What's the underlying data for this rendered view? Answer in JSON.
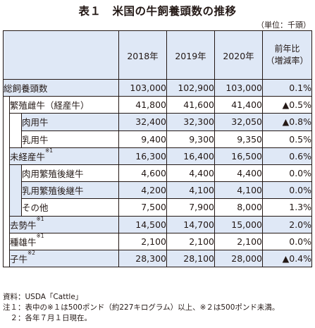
{
  "title": "表１　米国の牛飼養頭数の推移",
  "unit": "（単位：千頭）",
  "headers": {
    "y2018": "2018年",
    "y2019": "2019年",
    "y2020": "2020年",
    "change_line1": "前年比",
    "change_line2": "（増減率）"
  },
  "rows": [
    {
      "label": "総飼養頭数",
      "sup": "",
      "v2018": "103,000",
      "v2019": "102,900",
      "v2020": "103,000",
      "change": "0.1%"
    },
    {
      "label": "繁殖雌牛（経産牛）",
      "sup": "",
      "v2018": "41,800",
      "v2019": "41,600",
      "v2020": "41,400",
      "change": "▲0.5%"
    },
    {
      "label": "肉用牛",
      "sup": "",
      "v2018": "32,400",
      "v2019": "32,300",
      "v2020": "32,050",
      "change": "▲0.8%"
    },
    {
      "label": "乳用牛",
      "sup": "",
      "v2018": "9,400",
      "v2019": "9,300",
      "v2020": "9,350",
      "change": "0.5%"
    },
    {
      "label": "未経産牛",
      "sup": "※1",
      "v2018": "16,300",
      "v2019": "16,400",
      "v2020": "16,500",
      "change": "0.6%"
    },
    {
      "label": "肉用繁殖後継牛",
      "sup": "",
      "v2018": "4,600",
      "v2019": "4,400",
      "v2020": "4,400",
      "change": "0.0%"
    },
    {
      "label": "乳用繁殖後継牛",
      "sup": "",
      "v2018": "4,200",
      "v2019": "4,100",
      "v2020": "4,100",
      "change": "0.0%"
    },
    {
      "label": "その他",
      "sup": "",
      "v2018": "7,500",
      "v2019": "7,900",
      "v2020": "8,000",
      "change": "1.3%"
    },
    {
      "label": "去勢牛",
      "sup": "※1",
      "v2018": "14,500",
      "v2019": "14,700",
      "v2020": "15,000",
      "change": "2.0%"
    },
    {
      "label": "種雄牛",
      "sup": "※1",
      "v2018": "2,100",
      "v2019": "2,100",
      "v2020": "2,100",
      "change": "0.0%"
    },
    {
      "label": "子牛",
      "sup": "※2",
      "v2018": "28,300",
      "v2019": "28,100",
      "v2020": "28,000",
      "change": "▲0.4%"
    }
  ],
  "notes": [
    "資料：USDA「Cattle」",
    "注１：表中の※１は500ポンド（約227キログラム）以上、※２は500ポンド未満。",
    "　２：各年７月１日現在。"
  ]
}
